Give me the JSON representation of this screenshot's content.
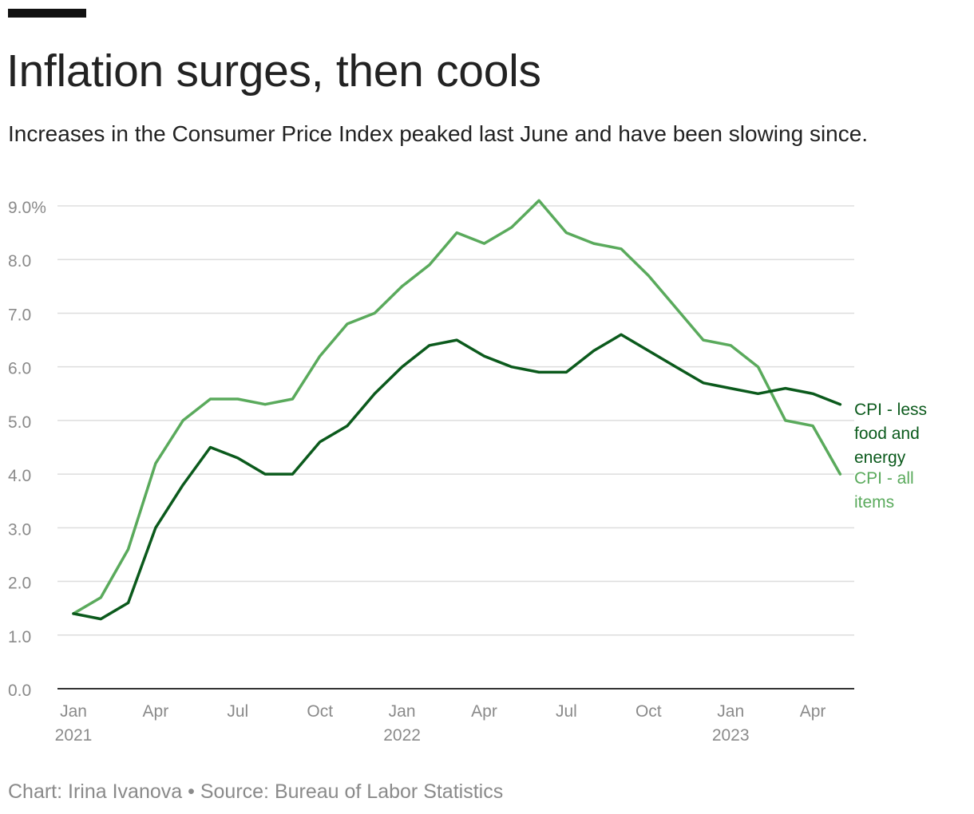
{
  "header": {
    "title": "Inflation surges, then cools",
    "subtitle": "Increases in the Consumer Price Index peaked last June and have been slowing since."
  },
  "footer": {
    "credit": "Chart: Irina Ivanova",
    "separator": "•",
    "source": "Source: Bureau of Labor Statistics"
  },
  "colors": {
    "all_items": "#5aaa5c",
    "core": "#0b5a1c",
    "grid": "#dddddd",
    "axis": "#333333",
    "tick_text": "#8a8a8a"
  },
  "chart_data": {
    "type": "line",
    "title": "Inflation surges, then cools",
    "xlabel": "",
    "ylabel": "",
    "ylim": [
      0,
      9
    ],
    "y_ticks": [
      0,
      1,
      2,
      3,
      4,
      5,
      6,
      7,
      8,
      9
    ],
    "y_tick_labels": [
      "0.0",
      "1.0",
      "2.0",
      "3.0",
      "4.0",
      "5.0",
      "6.0",
      "7.0",
      "8.0",
      "9.0%"
    ],
    "x": [
      "2021-01",
      "2021-02",
      "2021-03",
      "2021-04",
      "2021-05",
      "2021-06",
      "2021-07",
      "2021-08",
      "2021-09",
      "2021-10",
      "2021-11",
      "2021-12",
      "2022-01",
      "2022-02",
      "2022-03",
      "2022-04",
      "2022-05",
      "2022-06",
      "2022-07",
      "2022-08",
      "2022-09",
      "2022-10",
      "2022-11",
      "2022-12",
      "2023-01",
      "2023-02",
      "2023-03",
      "2023-04",
      "2023-05"
    ],
    "x_ticks": [
      {
        "index": 0,
        "label": "Jan",
        "year": "2021"
      },
      {
        "index": 3,
        "label": "Apr",
        "year": ""
      },
      {
        "index": 6,
        "label": "Jul",
        "year": ""
      },
      {
        "index": 9,
        "label": "Oct",
        "year": ""
      },
      {
        "index": 12,
        "label": "Jan",
        "year": "2022"
      },
      {
        "index": 15,
        "label": "Apr",
        "year": ""
      },
      {
        "index": 18,
        "label": "Jul",
        "year": ""
      },
      {
        "index": 21,
        "label": "Oct",
        "year": ""
      },
      {
        "index": 24,
        "label": "Jan",
        "year": "2023"
      },
      {
        "index": 27,
        "label": "Apr",
        "year": ""
      }
    ],
    "grid": true,
    "series": [
      {
        "name": "CPI - all items",
        "label_lines": [
          "CPI - all",
          "items"
        ],
        "color": "#5aaa5c",
        "values": [
          1.4,
          1.7,
          2.6,
          4.2,
          5.0,
          5.4,
          5.4,
          5.3,
          5.4,
          6.2,
          6.8,
          7.0,
          7.5,
          7.9,
          8.5,
          8.3,
          8.6,
          9.1,
          8.5,
          8.3,
          8.2,
          7.7,
          7.1,
          6.5,
          6.4,
          6.0,
          5.0,
          4.9,
          4.0
        ]
      },
      {
        "name": "CPI - less food and energy",
        "label_lines": [
          "CPI - less",
          "food and",
          "energy"
        ],
        "color": "#0b5a1c",
        "values": [
          1.4,
          1.3,
          1.6,
          3.0,
          3.8,
          4.5,
          4.3,
          4.0,
          4.0,
          4.6,
          4.9,
          5.5,
          6.0,
          6.4,
          6.5,
          6.2,
          6.0,
          5.9,
          5.9,
          6.3,
          6.6,
          6.3,
          6.0,
          5.7,
          5.6,
          5.5,
          5.6,
          5.5,
          5.3
        ]
      }
    ]
  }
}
